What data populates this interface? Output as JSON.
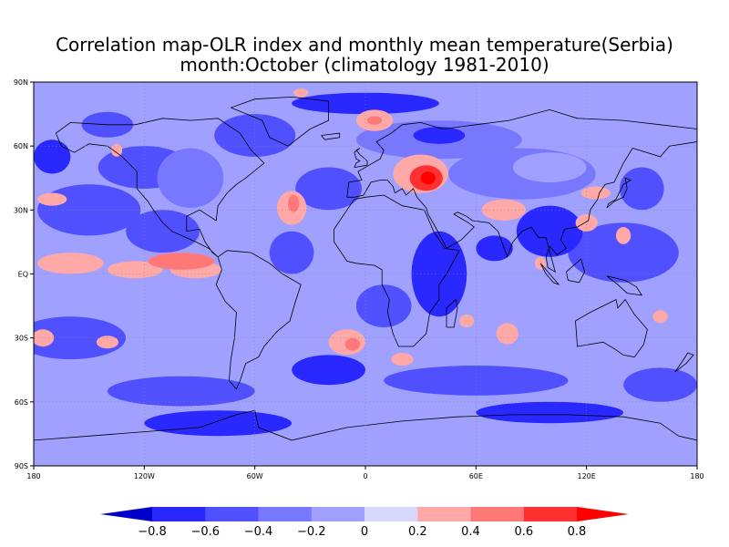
{
  "title": {
    "line1": "Correlation map-OLR index and monthly mean temperature(Serbia)",
    "line2": "month:October (climatology 1981-2010)"
  },
  "map": {
    "projection": "equirectangular",
    "lon_range": [
      -180,
      180
    ],
    "lat_range": [
      -90,
      90
    ],
    "lat_ticks": [
      {
        "value": 90,
        "label": "90N"
      },
      {
        "value": 60,
        "label": "60N"
      },
      {
        "value": 30,
        "label": "30N"
      },
      {
        "value": 0,
        "label": "EQ"
      },
      {
        "value": -30,
        "label": "30S"
      },
      {
        "value": -60,
        "label": "60S"
      },
      {
        "value": -90,
        "label": "90S"
      }
    ],
    "lon_ticks": [
      {
        "value": -180,
        "label": "180"
      },
      {
        "value": -120,
        "label": "120W"
      },
      {
        "value": -60,
        "label": "60W"
      },
      {
        "value": 0,
        "label": "0"
      },
      {
        "value": 60,
        "label": "60E"
      },
      {
        "value": 120,
        "label": "120E"
      },
      {
        "value": 180,
        "label": "180"
      }
    ],
    "grid": "dotted",
    "background_class": "-0.2 to 0",
    "patches": [
      {
        "lon": -150,
        "lat": 30,
        "rx": 28,
        "ry": 12,
        "class": 2
      },
      {
        "lon": -120,
        "lat": 50,
        "rx": 25,
        "ry": 10,
        "class": 2
      },
      {
        "lon": -95,
        "lat": 45,
        "rx": 18,
        "ry": 14,
        "class": 3
      },
      {
        "lon": -60,
        "lat": 65,
        "rx": 22,
        "ry": 10,
        "class": 2
      },
      {
        "lon": 40,
        "lat": 63,
        "rx": 45,
        "ry": 9,
        "class": 3
      },
      {
        "lon": 85,
        "lat": 47,
        "rx": 40,
        "ry": 12,
        "class": 3
      },
      {
        "lon": 100,
        "lat": 50,
        "rx": 20,
        "ry": 7,
        "class": 4
      },
      {
        "lon": -20,
        "lat": 40,
        "rx": 18,
        "ry": 10,
        "class": 2
      },
      {
        "lon": 140,
        "lat": 10,
        "rx": 30,
        "ry": 14,
        "class": 2
      },
      {
        "lon": -160,
        "lat": -30,
        "rx": 30,
        "ry": 10,
        "class": 2
      },
      {
        "lon": -100,
        "lat": -55,
        "rx": 40,
        "ry": 7,
        "class": 2
      },
      {
        "lon": 60,
        "lat": -50,
        "rx": 50,
        "ry": 7,
        "class": 2
      },
      {
        "lon": 160,
        "lat": -52,
        "rx": 20,
        "ry": 8,
        "class": 2
      },
      {
        "lon": -110,
        "lat": 20,
        "rx": 20,
        "ry": 10,
        "class": 2
      },
      {
        "lon": 150,
        "lat": 40,
        "rx": 12,
        "ry": 10,
        "class": 2
      },
      {
        "lon": 10,
        "lat": -15,
        "rx": 15,
        "ry": 10,
        "class": 2
      },
      {
        "lon": -40,
        "lat": 10,
        "rx": 12,
        "ry": 10,
        "class": 2
      },
      {
        "lon": -140,
        "lat": 70,
        "rx": 14,
        "ry": 6,
        "class": 2
      },
      {
        "lon": 0,
        "lat": 80,
        "rx": 40,
        "ry": 5,
        "class": 1
      },
      {
        "lon": -80,
        "lat": -70,
        "rx": 40,
        "ry": 6,
        "class": 1
      },
      {
        "lon": 100,
        "lat": -65,
        "rx": 40,
        "ry": 5,
        "class": 1
      },
      {
        "lon": 100,
        "lat": 20,
        "rx": 18,
        "ry": 12,
        "class": 1
      },
      {
        "lon": -170,
        "lat": 55,
        "rx": 10,
        "ry": 8,
        "class": 1
      },
      {
        "lon": -20,
        "lat": -45,
        "rx": 20,
        "ry": 7,
        "class": 1
      },
      {
        "lon": 40,
        "lat": 0,
        "rx": 15,
        "ry": 20,
        "class": 1
      },
      {
        "lon": -160,
        "lat": 5,
        "rx": 18,
        "ry": 5,
        "class": 6
      },
      {
        "lon": -125,
        "lat": 2,
        "rx": 15,
        "ry": 4,
        "class": 6
      },
      {
        "lon": -92,
        "lat": 2,
        "rx": 14,
        "ry": 4,
        "class": 6
      },
      {
        "lon": -100,
        "lat": 6,
        "rx": 18,
        "ry": 4,
        "class": 7
      },
      {
        "lon": -40,
        "lat": 31,
        "rx": 8,
        "ry": 8,
        "class": 6
      },
      {
        "lon": -39,
        "lat": 33,
        "rx": 3,
        "ry": 4,
        "class": 7
      },
      {
        "lon": 30,
        "lat": 47,
        "rx": 15,
        "ry": 9,
        "class": 6
      },
      {
        "lon": 33,
        "lat": 45,
        "rx": 9,
        "ry": 6,
        "class": 8
      },
      {
        "lon": 34,
        "lat": 45,
        "rx": 4,
        "ry": 3,
        "class": 9
      },
      {
        "lon": 5,
        "lat": 72,
        "rx": 10,
        "ry": 5,
        "class": 6
      },
      {
        "lon": 5,
        "lat": 72,
        "rx": 4,
        "ry": 2,
        "class": 7
      },
      {
        "lon": -10,
        "lat": -32,
        "rx": 10,
        "ry": 6,
        "class": 6
      },
      {
        "lon": -7,
        "lat": -33,
        "rx": 4,
        "ry": 3,
        "class": 7
      },
      {
        "lon": 75,
        "lat": 30,
        "rx": 12,
        "ry": 5,
        "class": 6
      },
      {
        "lon": 77,
        "lat": -28,
        "rx": 6,
        "ry": 5,
        "class": 6
      },
      {
        "lon": 55,
        "lat": -22,
        "rx": 4,
        "ry": 3,
        "class": 6
      },
      {
        "lon": 120,
        "lat": 24,
        "rx": 6,
        "ry": 4,
        "class": 6
      },
      {
        "lon": -175,
        "lat": -30,
        "rx": 6,
        "ry": 4,
        "class": 6
      },
      {
        "lon": -140,
        "lat": -32,
        "rx": 6,
        "ry": 3,
        "class": 6
      },
      {
        "lon": 125,
        "lat": 38,
        "rx": 8,
        "ry": 3,
        "class": 6
      },
      {
        "lon": 140,
        "lat": 18,
        "rx": 4,
        "ry": 4,
        "class": 6
      },
      {
        "lon": -170,
        "lat": 35,
        "rx": 8,
        "ry": 3,
        "class": 6
      },
      {
        "lon": -135,
        "lat": 58,
        "rx": 3,
        "ry": 3,
        "class": 6
      },
      {
        "lon": -35,
        "lat": 85,
        "rx": 4,
        "ry": 2,
        "class": 6
      },
      {
        "lon": 95,
        "lat": 5,
        "rx": 3,
        "ry": 3,
        "class": 6
      },
      {
        "lon": 20,
        "lat": -40,
        "rx": 6,
        "ry": 3,
        "class": 6
      },
      {
        "lon": 160,
        "lat": -20,
        "rx": 4,
        "ry": 3,
        "class": 6
      },
      {
        "lon": 40,
        "lat": 65,
        "rx": 14,
        "ry": 4,
        "class": 1
      },
      {
        "lon": 70,
        "lat": 12,
        "rx": 10,
        "ry": 6,
        "class": 1
      }
    ]
  },
  "colorbar": {
    "colors": [
      "#0000cc",
      "#2828ff",
      "#5050ff",
      "#7878ff",
      "#a0a0ff",
      "#d8d8ff",
      "#ffa8a8",
      "#ff7878",
      "#ff3030",
      "#ff0000"
    ],
    "labels": [
      "-0.8",
      "-0.6",
      "-0.4",
      "-0.2",
      "0",
      "0.2",
      "0.4",
      "0.6",
      "0.8"
    ]
  }
}
